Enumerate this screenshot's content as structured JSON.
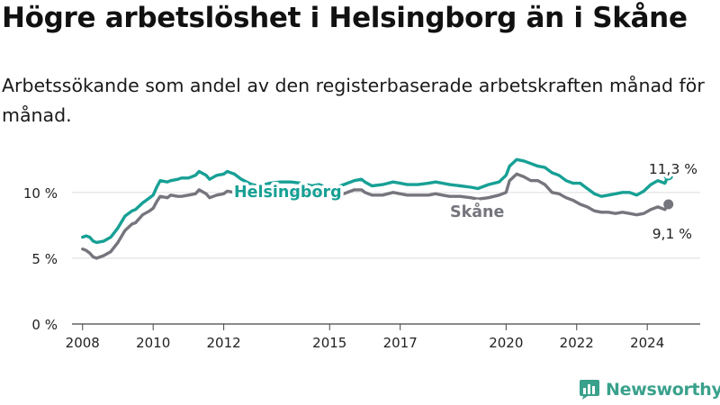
{
  "title": "Högre arbetslöshet i Helsingborg än i Skåne",
  "subtitle": "Arbetssökande som andel av den registerbaserade arbetskraften månad för månad.",
  "brand": {
    "name": "Newsworthy",
    "icon": "bar-chart-icon",
    "color": "#3aa18c"
  },
  "chart_data": {
    "type": "line",
    "xlabel": "",
    "ylabel": "",
    "xlim": [
      2007.7,
      2025.5
    ],
    "ylim": [
      0,
      13
    ],
    "x_ticks": [
      2008,
      2010,
      2012,
      2015,
      2017,
      2020,
      2022,
      2024
    ],
    "y_ticks": [
      {
        "value": 0,
        "label": "0 %"
      },
      {
        "value": 5,
        "label": "5 %"
      },
      {
        "value": 10,
        "label": "10 %"
      }
    ],
    "grid": "horizontal",
    "series": [
      {
        "name": "Helsingborg",
        "color": "#17a095",
        "end_label": "11,3 %",
        "end_value": 11.3,
        "points": [
          [
            2008.0,
            6.6
          ],
          [
            2008.1,
            6.7
          ],
          [
            2008.2,
            6.6
          ],
          [
            2008.3,
            6.3
          ],
          [
            2008.4,
            6.2
          ],
          [
            2008.6,
            6.3
          ],
          [
            2008.8,
            6.6
          ],
          [
            2009.0,
            7.3
          ],
          [
            2009.2,
            8.2
          ],
          [
            2009.4,
            8.6
          ],
          [
            2009.5,
            8.7
          ],
          [
            2009.7,
            9.2
          ],
          [
            2009.9,
            9.6
          ],
          [
            2010.0,
            9.8
          ],
          [
            2010.1,
            10.4
          ],
          [
            2010.2,
            10.9
          ],
          [
            2010.4,
            10.8
          ],
          [
            2010.5,
            10.9
          ],
          [
            2010.7,
            11.0
          ],
          [
            2010.8,
            11.1
          ],
          [
            2011.0,
            11.1
          ],
          [
            2011.2,
            11.3
          ],
          [
            2011.3,
            11.6
          ],
          [
            2011.5,
            11.3
          ],
          [
            2011.6,
            11.0
          ],
          [
            2011.8,
            11.3
          ],
          [
            2012.0,
            11.4
          ],
          [
            2012.1,
            11.6
          ],
          [
            2012.3,
            11.4
          ],
          [
            2012.5,
            11.0
          ],
          [
            2012.8,
            10.6
          ],
          [
            2013.0,
            10.5
          ],
          [
            2013.3,
            10.7
          ],
          [
            2013.6,
            10.8
          ],
          [
            2013.9,
            10.8
          ],
          [
            2014.2,
            10.7
          ],
          [
            2014.5,
            10.5
          ],
          [
            2014.7,
            10.6
          ],
          [
            2015.0,
            10.3
          ],
          [
            2015.2,
            10.4
          ],
          [
            2015.4,
            10.6
          ],
          [
            2015.7,
            10.9
          ],
          [
            2015.9,
            11.0
          ],
          [
            2016.0,
            10.8
          ],
          [
            2016.2,
            10.5
          ],
          [
            2016.5,
            10.6
          ],
          [
            2016.8,
            10.8
          ],
          [
            2017.0,
            10.7
          ],
          [
            2017.2,
            10.6
          ],
          [
            2017.5,
            10.6
          ],
          [
            2017.8,
            10.7
          ],
          [
            2018.0,
            10.8
          ],
          [
            2018.2,
            10.7
          ],
          [
            2018.4,
            10.6
          ],
          [
            2018.7,
            10.5
          ],
          [
            2019.0,
            10.4
          ],
          [
            2019.2,
            10.3
          ],
          [
            2019.5,
            10.6
          ],
          [
            2019.8,
            10.8
          ],
          [
            2020.0,
            11.3
          ],
          [
            2020.1,
            12.0
          ],
          [
            2020.3,
            12.5
          ],
          [
            2020.5,
            12.4
          ],
          [
            2020.7,
            12.2
          ],
          [
            2020.9,
            12.0
          ],
          [
            2021.1,
            11.9
          ],
          [
            2021.3,
            11.5
          ],
          [
            2021.5,
            11.3
          ],
          [
            2021.7,
            10.9
          ],
          [
            2021.9,
            10.7
          ],
          [
            2022.1,
            10.7
          ],
          [
            2022.3,
            10.3
          ],
          [
            2022.5,
            9.9
          ],
          [
            2022.7,
            9.7
          ],
          [
            2022.9,
            9.8
          ],
          [
            2023.1,
            9.9
          ],
          [
            2023.3,
            10.0
          ],
          [
            2023.5,
            10.0
          ],
          [
            2023.7,
            9.8
          ],
          [
            2023.9,
            10.1
          ],
          [
            2024.1,
            10.6
          ],
          [
            2024.3,
            10.9
          ],
          [
            2024.5,
            10.7
          ],
          [
            2024.6,
            11.3
          ]
        ]
      },
      {
        "name": "Skåne",
        "color": "#75757d",
        "end_label": "9,1 %",
        "end_value": 9.1,
        "points": [
          [
            2008.0,
            5.7
          ],
          [
            2008.1,
            5.6
          ],
          [
            2008.2,
            5.4
          ],
          [
            2008.3,
            5.1
          ],
          [
            2008.4,
            5.0
          ],
          [
            2008.6,
            5.2
          ],
          [
            2008.8,
            5.5
          ],
          [
            2009.0,
            6.2
          ],
          [
            2009.2,
            7.1
          ],
          [
            2009.4,
            7.6
          ],
          [
            2009.5,
            7.7
          ],
          [
            2009.7,
            8.3
          ],
          [
            2009.9,
            8.6
          ],
          [
            2010.0,
            8.8
          ],
          [
            2010.1,
            9.3
          ],
          [
            2010.2,
            9.7
          ],
          [
            2010.4,
            9.6
          ],
          [
            2010.5,
            9.8
          ],
          [
            2010.7,
            9.7
          ],
          [
            2010.8,
            9.7
          ],
          [
            2011.0,
            9.8
          ],
          [
            2011.2,
            9.9
          ],
          [
            2011.3,
            10.2
          ],
          [
            2011.5,
            9.9
          ],
          [
            2011.6,
            9.6
          ],
          [
            2011.8,
            9.8
          ],
          [
            2012.0,
            9.9
          ],
          [
            2012.1,
            10.1
          ],
          [
            2012.3,
            10.0
          ],
          [
            2012.5,
            9.8
          ],
          [
            2012.8,
            9.9
          ],
          [
            2013.0,
            10.0
          ],
          [
            2013.3,
            10.1
          ],
          [
            2013.6,
            10.1
          ],
          [
            2013.9,
            10.1
          ],
          [
            2014.2,
            10.0
          ],
          [
            2014.5,
            9.9
          ],
          [
            2014.7,
            9.9
          ],
          [
            2015.0,
            9.7
          ],
          [
            2015.2,
            9.8
          ],
          [
            2015.4,
            9.9
          ],
          [
            2015.7,
            10.2
          ],
          [
            2015.9,
            10.2
          ],
          [
            2016.0,
            10.0
          ],
          [
            2016.2,
            9.8
          ],
          [
            2016.5,
            9.8
          ],
          [
            2016.8,
            10.0
          ],
          [
            2017.0,
            9.9
          ],
          [
            2017.2,
            9.8
          ],
          [
            2017.5,
            9.8
          ],
          [
            2017.8,
            9.8
          ],
          [
            2018.0,
            9.9
          ],
          [
            2018.2,
            9.8
          ],
          [
            2018.4,
            9.7
          ],
          [
            2018.7,
            9.7
          ],
          [
            2019.0,
            9.6
          ],
          [
            2019.2,
            9.5
          ],
          [
            2019.5,
            9.6
          ],
          [
            2019.8,
            9.8
          ],
          [
            2020.0,
            10.0
          ],
          [
            2020.1,
            10.9
          ],
          [
            2020.3,
            11.4
          ],
          [
            2020.5,
            11.2
          ],
          [
            2020.7,
            10.9
          ],
          [
            2020.9,
            10.9
          ],
          [
            2021.1,
            10.6
          ],
          [
            2021.3,
            10.0
          ],
          [
            2021.5,
            9.9
          ],
          [
            2021.7,
            9.6
          ],
          [
            2021.9,
            9.4
          ],
          [
            2022.1,
            9.1
          ],
          [
            2022.3,
            8.9
          ],
          [
            2022.5,
            8.6
          ],
          [
            2022.7,
            8.5
          ],
          [
            2022.9,
            8.5
          ],
          [
            2023.1,
            8.4
          ],
          [
            2023.3,
            8.5
          ],
          [
            2023.5,
            8.4
          ],
          [
            2023.7,
            8.3
          ],
          [
            2023.9,
            8.4
          ],
          [
            2024.1,
            8.7
          ],
          [
            2024.3,
            8.9
          ],
          [
            2024.5,
            8.7
          ],
          [
            2024.6,
            9.1
          ]
        ]
      }
    ]
  }
}
